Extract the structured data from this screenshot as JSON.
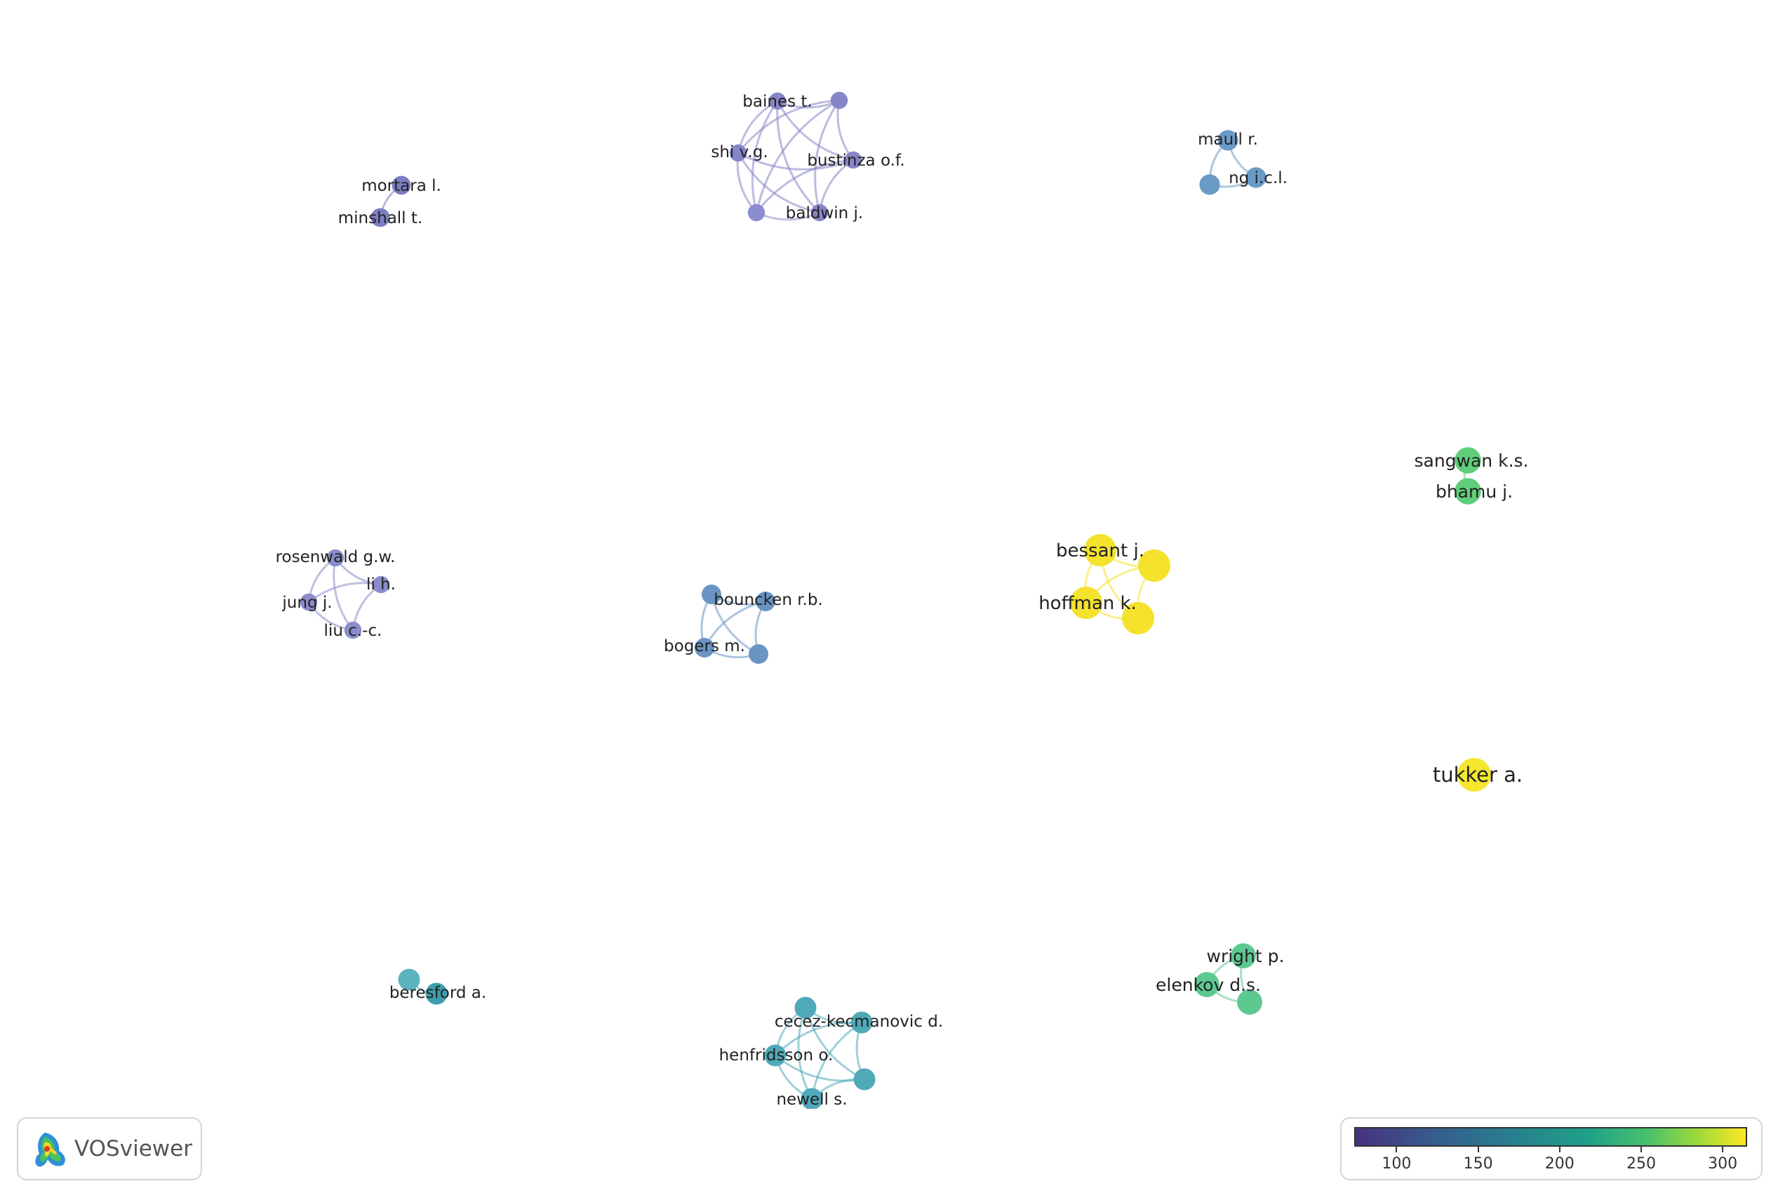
{
  "app": {
    "name": "VOSviewer"
  },
  "legend": {
    "ticks": [
      100,
      150,
      200,
      250,
      300
    ],
    "min": 74,
    "max": 315
  },
  "nodes": [
    {
      "id": "mortara",
      "label": "mortara l.",
      "value": 140,
      "color": "#7c7ec2"
    },
    {
      "id": "minshall",
      "label": "minshall t.",
      "value": 140,
      "color": "#7c7ec2"
    },
    {
      "id": "baines",
      "label": "baines t.",
      "value": 120,
      "color": "#8585c8"
    },
    {
      "id": "cl1_top",
      "label": "",
      "value": 120,
      "color": "#8585c8"
    },
    {
      "id": "shi",
      "label": "shi v.g.",
      "value": 120,
      "color": "#8585c8"
    },
    {
      "id": "bustinza",
      "label": "bustinza o.f.",
      "value": 120,
      "color": "#8585c8"
    },
    {
      "id": "cl1_bl",
      "label": "",
      "value": 120,
      "color": "#8c8dd0"
    },
    {
      "id": "baldwin",
      "label": "baldwin j.",
      "value": 120,
      "color": "#8585c8"
    },
    {
      "id": "maull",
      "label": "maull r.",
      "value": 160,
      "color": "#6a9bc6"
    },
    {
      "id": "cl2_l",
      "label": "",
      "value": 160,
      "color": "#6a9bc6"
    },
    {
      "id": "ng",
      "label": "ng i.c.l.",
      "value": 160,
      "color": "#6a9bc6"
    },
    {
      "id": "sangwan",
      "label": "sangwan k.s.",
      "value": 230,
      "color": "#5fce7a"
    },
    {
      "id": "bhamu",
      "label": "bhamu j.",
      "value": 230,
      "color": "#5fce7a"
    },
    {
      "id": "rosenwald",
      "label": "rosenwald g.w.",
      "value": 120,
      "color": "#8a8ccb"
    },
    {
      "id": "lih",
      "label": "li h.",
      "value": 120,
      "color": "#8a8ccb"
    },
    {
      "id": "jung",
      "label": "jung j.",
      "value": 120,
      "color": "#8a8ccb"
    },
    {
      "id": "liucc",
      "label": "liu c.-c.",
      "value": 120,
      "color": "#8a8ccb"
    },
    {
      "id": "cl4_tl",
      "label": "",
      "value": 150,
      "color": "#6a94c4"
    },
    {
      "id": "bouncken",
      "label": "bouncken r.b.",
      "value": 150,
      "color": "#6a94c4"
    },
    {
      "id": "bogers",
      "label": "bogers m.",
      "value": 150,
      "color": "#6a94c4"
    },
    {
      "id": "cl4_br",
      "label": "",
      "value": 150,
      "color": "#6a94c4"
    },
    {
      "id": "bessant",
      "label": "bessant j.",
      "value": 300,
      "color": "#f4e22c"
    },
    {
      "id": "cl5_r",
      "label": "",
      "value": 300,
      "color": "#f4e22c"
    },
    {
      "id": "hoffman",
      "label": "hoffman k.",
      "value": 300,
      "color": "#f4e22c"
    },
    {
      "id": "cl5_b",
      "label": "",
      "value": 300,
      "color": "#f4e22c"
    },
    {
      "id": "tukker",
      "label": "tukker a.",
      "value": 315,
      "color": "#f5e62e"
    },
    {
      "id": "cl6_tl",
      "label": "",
      "value": 175,
      "color": "#5bb3bf"
    },
    {
      "id": "beresford",
      "label": "beresford a.",
      "value": 175,
      "color": "#3e9eab"
    },
    {
      "id": "cl7_top",
      "label": "",
      "value": 175,
      "color": "#50a9b8"
    },
    {
      "id": "cecez",
      "label": "cecez-kecmanovic d.",
      "value": 175,
      "color": "#50a9b8"
    },
    {
      "id": "henfridsson",
      "label": "henfridsson o.",
      "value": 175,
      "color": "#50a9b8"
    },
    {
      "id": "cl7_r",
      "label": "",
      "value": 175,
      "color": "#50a9b8"
    },
    {
      "id": "newell",
      "label": "newell s.",
      "value": 175,
      "color": "#50a9b8"
    },
    {
      "id": "wright",
      "label": "wright p.",
      "value": 215,
      "color": "#5ec891"
    },
    {
      "id": "elenkov",
      "label": "elenkov d.s.",
      "value": 215,
      "color": "#5ec891"
    },
    {
      "id": "cl8_b",
      "label": "",
      "value": 215,
      "color": "#5ec891"
    }
  ],
  "links": [
    [
      "mortara",
      "minshall"
    ],
    [
      "baines",
      "cl1_top"
    ],
    [
      "baines",
      "shi"
    ],
    [
      "baines",
      "bustinza"
    ],
    [
      "baines",
      "cl1_bl"
    ],
    [
      "baines",
      "baldwin"
    ],
    [
      "cl1_top",
      "shi"
    ],
    [
      "cl1_top",
      "bustinza"
    ],
    [
      "cl1_top",
      "cl1_bl"
    ],
    [
      "cl1_top",
      "baldwin"
    ],
    [
      "shi",
      "bustinza"
    ],
    [
      "shi",
      "cl1_bl"
    ],
    [
      "shi",
      "baldwin"
    ],
    [
      "bustinza",
      "cl1_bl"
    ],
    [
      "bustinza",
      "baldwin"
    ],
    [
      "cl1_bl",
      "baldwin"
    ],
    [
      "maull",
      "cl2_l"
    ],
    [
      "maull",
      "ng"
    ],
    [
      "cl2_l",
      "ng"
    ],
    [
      "sangwan",
      "bhamu"
    ],
    [
      "rosenwald",
      "lih"
    ],
    [
      "rosenwald",
      "jung"
    ],
    [
      "rosenwald",
      "liucc"
    ],
    [
      "lih",
      "jung"
    ],
    [
      "lih",
      "liucc"
    ],
    [
      "jung",
      "liucc"
    ],
    [
      "cl4_tl",
      "bouncken"
    ],
    [
      "cl4_tl",
      "bogers"
    ],
    [
      "cl4_tl",
      "cl4_br"
    ],
    [
      "bouncken",
      "bogers"
    ],
    [
      "bouncken",
      "cl4_br"
    ],
    [
      "bogers",
      "cl4_br"
    ],
    [
      "bessant",
      "cl5_r"
    ],
    [
      "bessant",
      "hoffman"
    ],
    [
      "bessant",
      "cl5_b"
    ],
    [
      "cl5_r",
      "hoffman"
    ],
    [
      "cl5_r",
      "cl5_b"
    ],
    [
      "hoffman",
      "cl5_b"
    ],
    [
      "cl6_tl",
      "beresford"
    ],
    [
      "cl7_top",
      "cecez"
    ],
    [
      "cl7_top",
      "henfridsson"
    ],
    [
      "cl7_top",
      "cl7_r"
    ],
    [
      "cl7_top",
      "newell"
    ],
    [
      "cecez",
      "henfridsson"
    ],
    [
      "cecez",
      "cl7_r"
    ],
    [
      "cecez",
      "newell"
    ],
    [
      "henfridsson",
      "cl7_r"
    ],
    [
      "henfridsson",
      "newell"
    ],
    [
      "cl7_r",
      "newell"
    ],
    [
      "wright",
      "elenkov"
    ],
    [
      "wright",
      "cl8_b"
    ],
    [
      "elenkov",
      "cl8_b"
    ]
  ]
}
